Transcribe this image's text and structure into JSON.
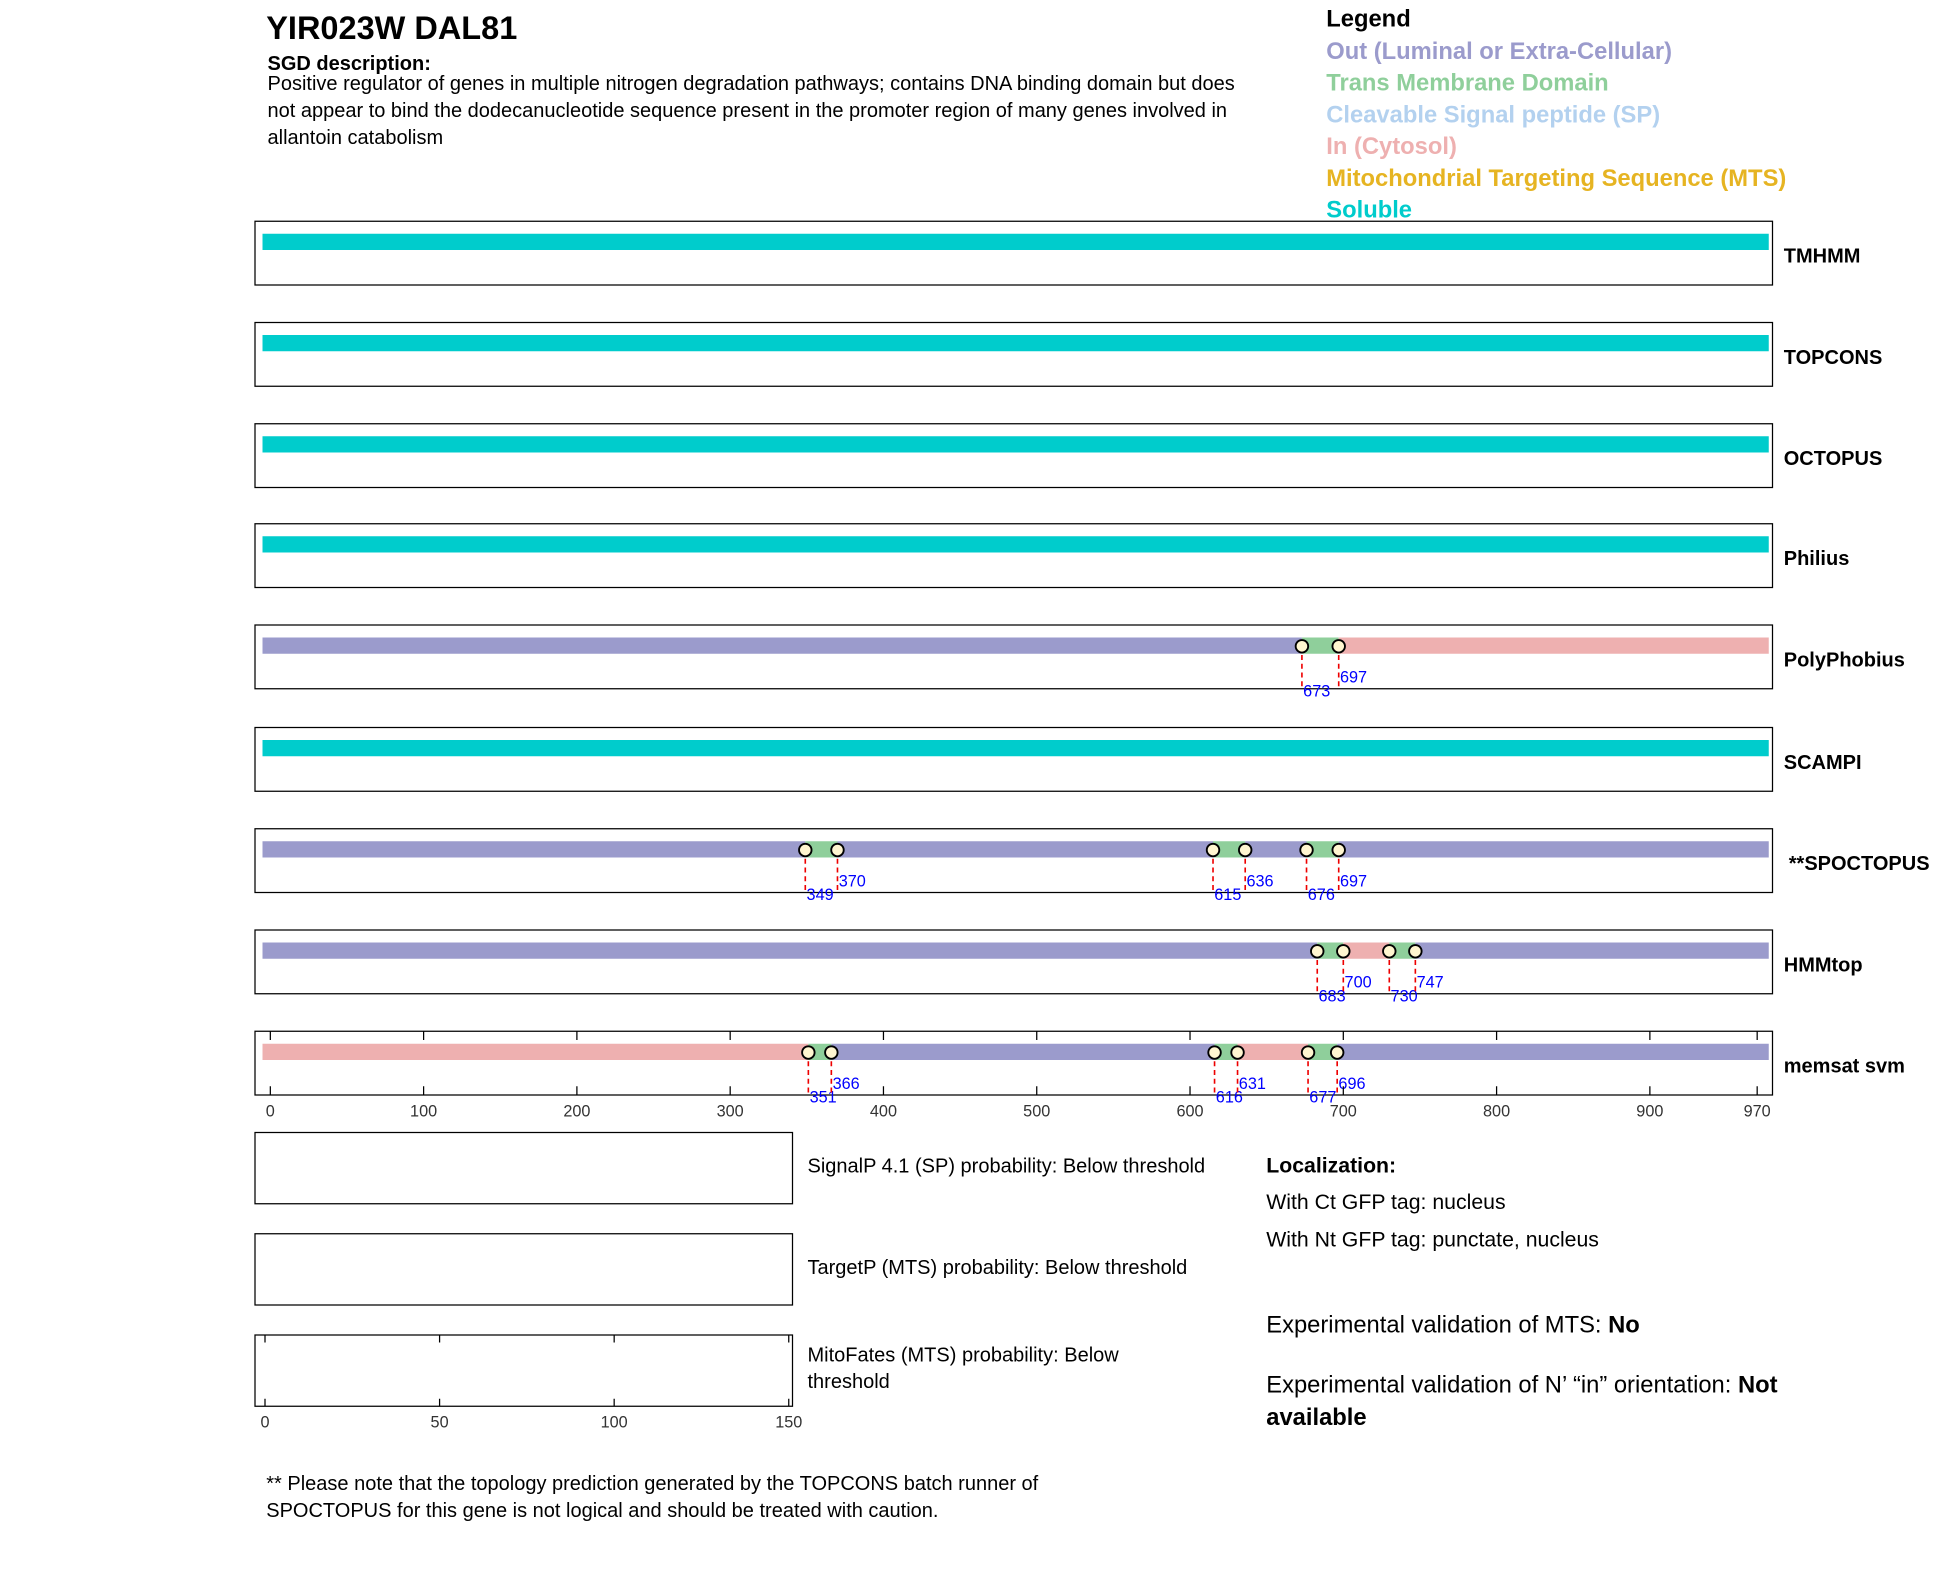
{
  "header": {
    "title": "YIR023W  DAL81",
    "description_label": "SGD description:",
    "description_lines": [
      "Positive regulator of genes in multiple nitrogen degradation pathways; contains DNA binding domain but does",
      "not appear to bind the dodecanucleotide sequence present in the promoter region of many genes involved in",
      "allantoin catabolism"
    ]
  },
  "legend": {
    "title": "Legend",
    "items": [
      {
        "label": "Out (Luminal or Extra-Cellular)",
        "color": "#9b9bcc"
      },
      {
        "label": "Trans Membrane Domain",
        "color": "#8fcf9b"
      },
      {
        "label": "Cleavable Signal peptide (SP)",
        "color": "#b3d1ef"
      },
      {
        "label": "In (Cytosol)",
        "color": "#eeb0b0"
      },
      {
        "label": "Mitochondrial Targeting Sequence (MTS)",
        "color": "#e6b422"
      },
      {
        "label": "Soluble",
        "color": "#00cccc"
      }
    ]
  },
  "topology": {
    "xlim": [
      -10,
      980
    ],
    "xticks": [
      0,
      100,
      200,
      300,
      400,
      500,
      600,
      700,
      800,
      900,
      970
    ],
    "tracks": [
      {
        "name": "TMHMM",
        "colors": [
          "#00cccc"
        ],
        "boundaries": []
      },
      {
        "name": "TOPCONS",
        "colors": [
          "#00cccc"
        ],
        "boundaries": []
      },
      {
        "name": "OCTOPUS",
        "colors": [
          "#00cccc"
        ],
        "boundaries": []
      },
      {
        "name": "Philius",
        "colors": [
          "#00cccc"
        ],
        "boundaries": []
      },
      {
        "name": "PolyPhobius",
        "colors": [
          "#9b9bcc",
          "#8fcf9b",
          "#eeb0b0"
        ],
        "boundaries": [
          673,
          697
        ]
      },
      {
        "name": "SCAMPI",
        "colors": [
          "#00cccc"
        ],
        "boundaries": []
      },
      {
        "name": "**SPOCTOPUS",
        "colors": [
          "#9b9bcc",
          "#8fcf9b",
          "#9b9bcc",
          "#8fcf9b",
          "#9b9bcc",
          "#8fcf9b",
          "#9b9bcc"
        ],
        "boundaries": [
          349,
          370,
          615,
          636,
          676,
          697
        ]
      },
      {
        "name": "HMMtop",
        "colors": [
          "#9b9bcc",
          "#8fcf9b",
          "#eeb0b0",
          "#8fcf9b",
          "#9b9bcc"
        ],
        "boundaries": [
          683,
          700,
          730,
          747
        ]
      },
      {
        "name": "memsat svm",
        "colors": [
          "#eeb0b0",
          "#8fcf9b",
          "#9b9bcc",
          "#8fcf9b",
          "#eeb0b0",
          "#8fcf9b",
          "#9b9bcc"
        ],
        "boundaries": [
          351,
          366,
          616,
          631,
          677,
          696
        ]
      }
    ]
  },
  "predictions": {
    "xlim": [
      0,
      150
    ],
    "xticks": [
      0,
      50,
      100,
      150
    ],
    "panels": [
      {
        "label_lines": [
          "SignalP 4.1 (SP) probability: Below threshold"
        ]
      },
      {
        "label_lines": [
          "TargetP (MTS) probability: Below threshold"
        ]
      },
      {
        "label_lines": [
          "MitoFates (MTS) probability: Below",
          "threshold"
        ]
      }
    ]
  },
  "localization": {
    "title": "Localization:",
    "lines": [
      "With Ct GFP tag: nucleus",
      "With Nt GFP tag: punctate, nucleus"
    ],
    "mts_validation": {
      "label": "Experimental validation of MTS: ",
      "value": "No"
    },
    "orientation_validation": {
      "label": "Experimental validation of N’ “in” orientation: ",
      "value_lines": [
        "Not",
        "available"
      ]
    }
  },
  "footnote_lines": [
    "** Please note that the topology prediction generated by the TOPCONS batch runner of",
    "SPOCTOPUS for this gene is not logical and should be treated with caution."
  ]
}
